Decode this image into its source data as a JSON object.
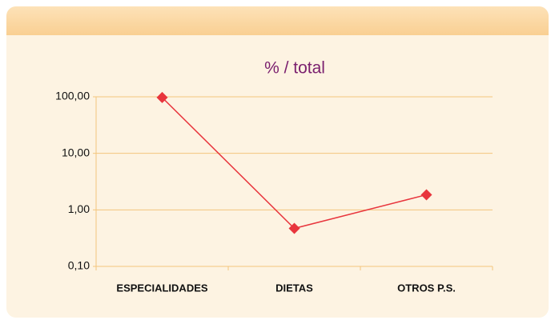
{
  "chart_data": {
    "type": "line",
    "title": "% / total",
    "categories": [
      "ESPECIALIDADES",
      "DIETAS",
      "OTROS P.S."
    ],
    "series": [
      {
        "name": null,
        "color": "#e8353d",
        "values": [
          97,
          0.47,
          1.85
        ]
      }
    ],
    "log_scale": true,
    "grid": true,
    "grid_color": "#f3c57c",
    "ylim": [
      0.1,
      100
    ],
    "yticks": [
      {
        "value": 0.1,
        "label": "0,10"
      },
      {
        "value": 1,
        "label": "1,00"
      },
      {
        "value": 10,
        "label": "10,00"
      },
      {
        "value": 100,
        "label": "100,00"
      }
    ]
  }
}
